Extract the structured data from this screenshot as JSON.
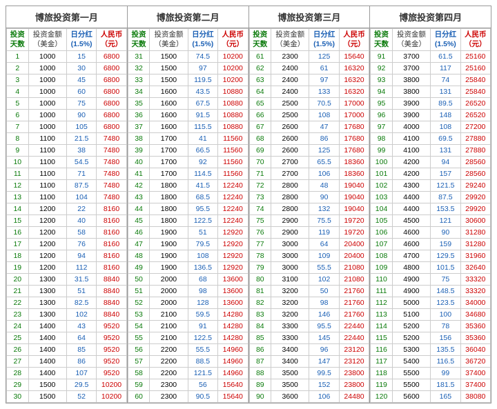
{
  "sections": [
    {
      "title": "博旅投资第一月"
    },
    {
      "title": "博旅投资第二月"
    },
    {
      "title": "博旅投资第三月"
    },
    {
      "title": "博旅投资第四月"
    }
  ],
  "headers": {
    "days": "投资\n天数",
    "amount": "投资金额\n（美金）",
    "dividend": "日分红\n(1.5%)",
    "rmb": "人民币\n（元）"
  },
  "rows": [
    [
      [
        1,
        1000,
        15,
        6800
      ],
      [
        31,
        1500,
        74.5,
        10200
      ],
      [
        61,
        2300,
        125,
        15640
      ],
      [
        91,
        3700,
        61.5,
        25160
      ]
    ],
    [
      [
        2,
        1000,
        30,
        6800
      ],
      [
        32,
        1500,
        97,
        10200
      ],
      [
        62,
        2400,
        61,
        16320
      ],
      [
        92,
        3700,
        117,
        25160
      ]
    ],
    [
      [
        3,
        1000,
        45,
        6800
      ],
      [
        33,
        1500,
        119.5,
        10200
      ],
      [
        63,
        2400,
        97,
        16320
      ],
      [
        93,
        3800,
        74,
        25840
      ]
    ],
    [
      [
        4,
        1000,
        60,
        6800
      ],
      [
        34,
        1600,
        43.5,
        10880
      ],
      [
        64,
        2400,
        133,
        16320
      ],
      [
        94,
        3800,
        131,
        25840
      ]
    ],
    [
      [
        5,
        1000,
        75,
        6800
      ],
      [
        35,
        1600,
        67.5,
        10880
      ],
      [
        65,
        2500,
        70.5,
        17000
      ],
      [
        95,
        3900,
        89.5,
        26520
      ]
    ],
    [
      [
        6,
        1000,
        90,
        6800
      ],
      [
        36,
        1600,
        91.5,
        10880
      ],
      [
        66,
        2500,
        108,
        17000
      ],
      [
        96,
        3900,
        148,
        26520
      ]
    ],
    [
      [
        7,
        1000,
        105,
        6800
      ],
      [
        37,
        1600,
        115.5,
        10880
      ],
      [
        67,
        2600,
        47,
        17680
      ],
      [
        97,
        4000,
        108,
        27200
      ]
    ],
    [
      [
        8,
        1100,
        21.5,
        7480
      ],
      [
        38,
        1700,
        41,
        11560
      ],
      [
        68,
        2600,
        86,
        17680
      ],
      [
        98,
        4100,
        69.5,
        27880
      ]
    ],
    [
      [
        9,
        1100,
        38,
        7480
      ],
      [
        39,
        1700,
        66.5,
        11560
      ],
      [
        69,
        2600,
        125,
        17680
      ],
      [
        99,
        4100,
        131,
        27880
      ]
    ],
    [
      [
        10,
        1100,
        54.5,
        7480
      ],
      [
        40,
        1700,
        92,
        11560
      ],
      [
        70,
        2700,
        65.5,
        18360
      ],
      [
        100,
        4200,
        94,
        28560
      ]
    ],
    [
      [
        11,
        1100,
        71,
        7480
      ],
      [
        41,
        1700,
        114.5,
        11560
      ],
      [
        71,
        2700,
        106,
        18360
      ],
      [
        101,
        4200,
        157,
        28560
      ]
    ],
    [
      [
        12,
        1100,
        87.5,
        7480
      ],
      [
        42,
        1800,
        41.5,
        12240
      ],
      [
        72,
        2800,
        48,
        19040
      ],
      [
        102,
        4300,
        121.5,
        29240
      ]
    ],
    [
      [
        13,
        1100,
        104,
        7480
      ],
      [
        43,
        1800,
        68.5,
        12240
      ],
      [
        73,
        2800,
        90,
        19040
      ],
      [
        103,
        4400,
        87.5,
        29920
      ]
    ],
    [
      [
        14,
        1200,
        22,
        8160
      ],
      [
        44,
        1800,
        95.5,
        12240
      ],
      [
        74,
        2800,
        132,
        19040
      ],
      [
        104,
        4400,
        153.5,
        29920
      ]
    ],
    [
      [
        15,
        1200,
        40,
        8160
      ],
      [
        45,
        1800,
        122.5,
        12240
      ],
      [
        75,
        2900,
        75.5,
        19720
      ],
      [
        105,
        4500,
        121,
        30600
      ]
    ],
    [
      [
        16,
        1200,
        58,
        8160
      ],
      [
        46,
        1900,
        51,
        12920
      ],
      [
        76,
        2900,
        119,
        19720
      ],
      [
        106,
        4600,
        90,
        31280
      ]
    ],
    [
      [
        17,
        1200,
        76,
        8160
      ],
      [
        47,
        1900,
        79.5,
        12920
      ],
      [
        77,
        3000,
        64,
        20400
      ],
      [
        107,
        4600,
        159,
        31280
      ]
    ],
    [
      [
        18,
        1200,
        94,
        8160
      ],
      [
        48,
        1900,
        108,
        12920
      ],
      [
        78,
        3000,
        109,
        20400
      ],
      [
        108,
        4700,
        129.5,
        31960
      ]
    ],
    [
      [
        19,
        1200,
        112,
        8160
      ],
      [
        49,
        1900,
        136.5,
        12920
      ],
      [
        79,
        3000,
        55.5,
        21080
      ],
      [
        109,
        4800,
        101.5,
        32640
      ]
    ],
    [
      [
        20,
        1300,
        31.5,
        8840
      ],
      [
        50,
        2000,
        68,
        13600
      ],
      [
        80,
        3100,
        102,
        21080
      ],
      [
        110,
        4900,
        75,
        33320
      ]
    ],
    [
      [
        21,
        1300,
        51,
        8840
      ],
      [
        51,
        2000,
        98,
        13600
      ],
      [
        81,
        3200,
        50,
        21760
      ],
      [
        111,
        4900,
        148.5,
        33320
      ]
    ],
    [
      [
        22,
        1300,
        82.5,
        8840
      ],
      [
        52,
        2000,
        128,
        13600
      ],
      [
        82,
        3200,
        98,
        21760
      ],
      [
        112,
        5000,
        123.5,
        34000
      ]
    ],
    [
      [
        23,
        1300,
        102,
        8840
      ],
      [
        53,
        2100,
        59.5,
        14280
      ],
      [
        83,
        3200,
        146,
        21760
      ],
      [
        113,
        5100,
        100,
        34680
      ]
    ],
    [
      [
        24,
        1400,
        43,
        9520
      ],
      [
        54,
        2100,
        91,
        14280
      ],
      [
        84,
        3300,
        95.5,
        22440
      ],
      [
        114,
        5200,
        78,
        35360
      ]
    ],
    [
      [
        25,
        1400,
        64,
        9520
      ],
      [
        55,
        2100,
        122.5,
        14280
      ],
      [
        85,
        3300,
        145,
        22440
      ],
      [
        115,
        5200,
        156,
        35360
      ]
    ],
    [
      [
        26,
        1400,
        85,
        9520
      ],
      [
        56,
        2200,
        55.5,
        14960
      ],
      [
        86,
        3400,
        96,
        23120
      ],
      [
        116,
        5300,
        135.5,
        36040
      ]
    ],
    [
      [
        27,
        1400,
        86,
        9520
      ],
      [
        57,
        2200,
        88.5,
        14960
      ],
      [
        87,
        3400,
        147,
        23120
      ],
      [
        117,
        5400,
        116.5,
        36720
      ]
    ],
    [
      [
        28,
        1400,
        107,
        9520
      ],
      [
        58,
        2200,
        121.5,
        14960
      ],
      [
        88,
        3500,
        99.5,
        23800
      ],
      [
        118,
        5500,
        99,
        37400
      ]
    ],
    [
      [
        29,
        1500,
        29.5,
        10200
      ],
      [
        59,
        2300,
        56,
        15640
      ],
      [
        89,
        3500,
        152,
        23800
      ],
      [
        119,
        5500,
        181.5,
        37400
      ]
    ],
    [
      [
        30,
        1500,
        52,
        10200
      ],
      [
        60,
        2300,
        90.5,
        15640
      ],
      [
        90,
        3600,
        106,
        24480
      ],
      [
        120,
        5600,
        165,
        38080
      ]
    ]
  ]
}
